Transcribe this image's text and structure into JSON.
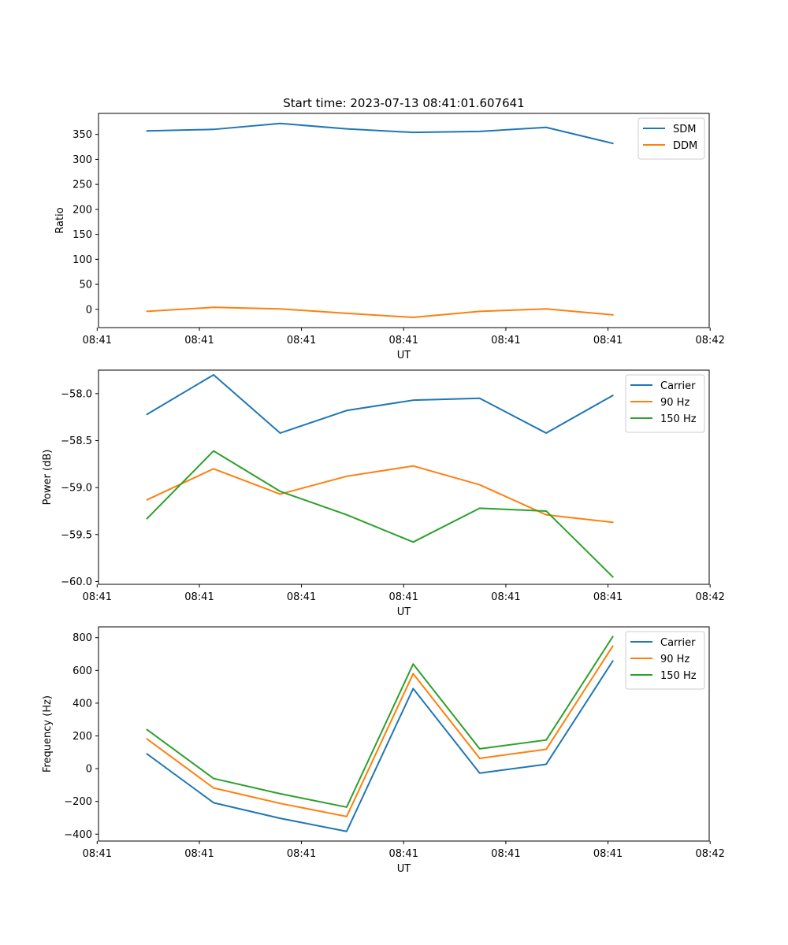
{
  "chart_data": [
    {
      "type": "line",
      "title": "Start time: 2023-07-13 08:41:01.607641",
      "xlabel": "UT",
      "ylabel": "Ratio",
      "x": [
        1,
        2,
        3,
        4,
        5,
        6,
        7,
        8
      ],
      "x_tick_values": [
        0.25,
        1.786,
        3.321,
        4.857,
        6.393,
        7.929,
        9.464
      ],
      "x_tick_labels": [
        "08:41",
        "08:41",
        "08:41",
        "08:41",
        "08:41",
        "08:41",
        "08:42"
      ],
      "xlim": [
        0.27,
        9.45
      ],
      "ylim": [
        -36.5,
        392
      ],
      "y_ticks": [
        0,
        50,
        100,
        150,
        200,
        250,
        300,
        350
      ],
      "y_tick_labels": [
        "0",
        "50",
        "100",
        "150",
        "200",
        "250",
        "300",
        "350"
      ],
      "legend": "upper right",
      "series": [
        {
          "name": "SDM",
          "color": "#1f77b4",
          "values": [
            357,
            360,
            372,
            361,
            354,
            356,
            364,
            332
          ]
        },
        {
          "name": "DDM",
          "color": "#ff7f0e",
          "values": [
            -4,
            4,
            1,
            -8,
            -16,
            -4,
            1,
            -11
          ]
        }
      ]
    },
    {
      "type": "line",
      "title": "",
      "xlabel": "UT",
      "ylabel": "Power (dB)",
      "x": [
        1,
        2,
        3,
        4,
        5,
        6,
        7,
        8
      ],
      "x_tick_values": [
        0.25,
        1.786,
        3.321,
        4.857,
        6.393,
        7.929,
        9.464
      ],
      "x_tick_labels": [
        "08:41",
        "08:41",
        "08:41",
        "08:41",
        "08:41",
        "08:41",
        "08:42"
      ],
      "xlim": [
        0.27,
        9.45
      ],
      "ylim": [
        -60.03,
        -57.75
      ],
      "y_ticks": [
        -60.0,
        -59.5,
        -59.0,
        -58.5,
        -58.0
      ],
      "y_tick_labels": [
        "−60.0",
        "−59.5",
        "−59.0",
        "−58.5",
        "−58.0"
      ],
      "legend": "upper right",
      "series": [
        {
          "name": "Carrier",
          "color": "#1f77b4",
          "values": [
            -58.22,
            -57.8,
            -58.42,
            -58.18,
            -58.07,
            -58.05,
            -58.42,
            -58.02
          ]
        },
        {
          "name": "90 Hz",
          "color": "#ff7f0e",
          "values": [
            -59.13,
            -58.8,
            -59.07,
            -58.88,
            -58.77,
            -58.97,
            -59.29,
            -59.37
          ]
        },
        {
          "name": "150 Hz",
          "color": "#2ca02c",
          "values": [
            -59.33,
            -58.61,
            -59.04,
            -59.29,
            -59.58,
            -59.22,
            -59.25,
            -59.95
          ]
        }
      ]
    },
    {
      "type": "line",
      "title": "",
      "xlabel": "UT",
      "ylabel": "Frequency (Hz)",
      "x": [
        1,
        2,
        3,
        4,
        5,
        6,
        7,
        8
      ],
      "x_tick_values": [
        0.25,
        1.786,
        3.321,
        4.857,
        6.393,
        7.929,
        9.464
      ],
      "x_tick_labels": [
        "08:41",
        "08:41",
        "08:41",
        "08:41",
        "08:41",
        "08:41",
        "08:42"
      ],
      "xlim": [
        0.27,
        9.45
      ],
      "ylim": [
        -442,
        866
      ],
      "y_ticks": [
        -400,
        -200,
        0,
        200,
        400,
        600,
        800
      ],
      "y_tick_labels": [
        "−400",
        "−200",
        "0",
        "200",
        "400",
        "600",
        "800"
      ],
      "legend": "upper right",
      "series": [
        {
          "name": "Carrier",
          "color": "#1f77b4",
          "values": [
            90,
            -208,
            -303,
            -383,
            489,
            -27,
            27,
            657
          ]
        },
        {
          "name": "90 Hz",
          "color": "#ff7f0e",
          "values": [
            181,
            -118,
            -212,
            -292,
            580,
            63,
            118,
            748
          ]
        },
        {
          "name": "150 Hz",
          "color": "#2ca02c",
          "values": [
            238,
            -60,
            -153,
            -235,
            639,
            121,
            175,
            806
          ]
        }
      ]
    }
  ]
}
